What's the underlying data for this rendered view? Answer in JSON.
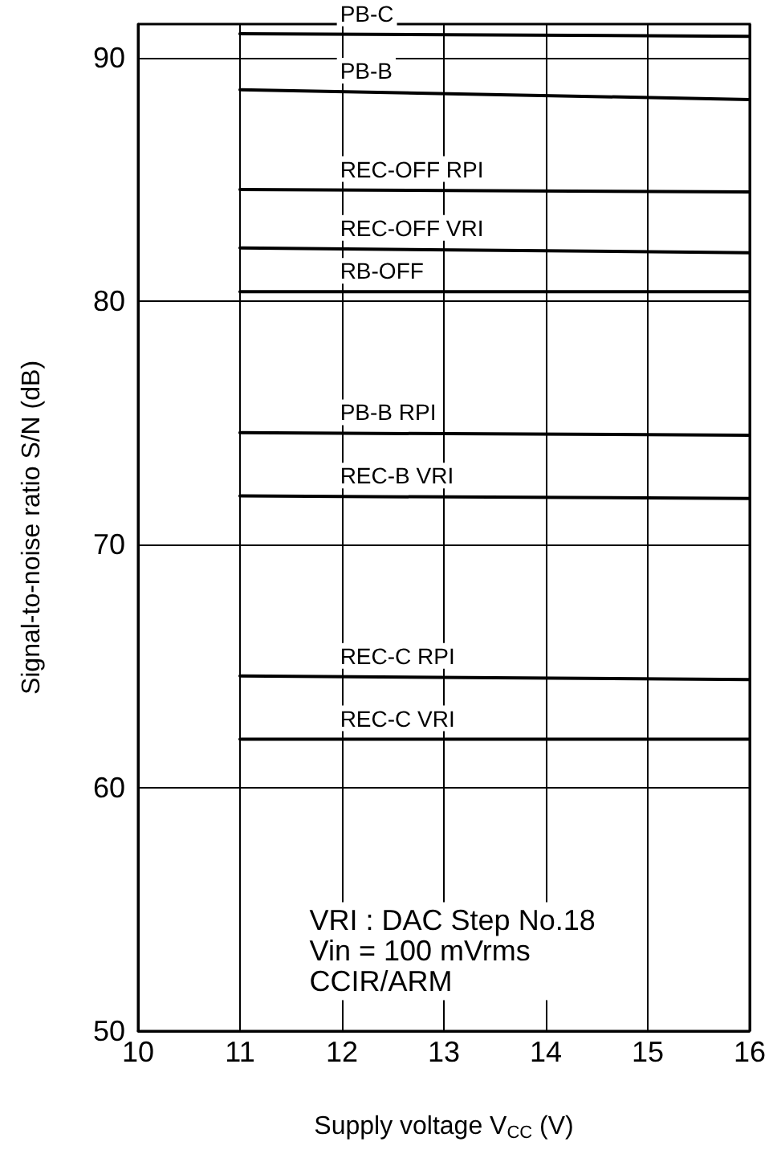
{
  "chart_data": {
    "type": "line",
    "xlabel": "Supply voltage V$_{CC}$ (V)",
    "ylabel": "Signal-to-noise ratio S/N (dB)",
    "x": [
      11,
      16
    ],
    "series": [
      {
        "name": "PB-C",
        "color": "#000000",
        "values": [
          91.0,
          90.9
        ]
      },
      {
        "name": "PB-B",
        "color": "#000000",
        "values": [
          88.7,
          88.3
        ]
      },
      {
        "name": "REC-OFF RPI",
        "color": "#000000",
        "values": [
          84.6,
          84.5
        ]
      },
      {
        "name": "REC-OFF VRI",
        "color": "#000000",
        "values": [
          82.2,
          82.0
        ]
      },
      {
        "name": "RB-OFF",
        "color": "#000000",
        "values": [
          80.4,
          80.4
        ]
      },
      {
        "name": "PB-B RPI",
        "color": "#000000",
        "values": [
          74.6,
          74.5
        ]
      },
      {
        "name": "REC-B VRI",
        "color": "#000000",
        "values": [
          72.0,
          71.9
        ]
      },
      {
        "name": "REC-C RPI",
        "color": "#000000",
        "values": [
          64.6,
          64.45
        ]
      },
      {
        "name": "REC-C VRI",
        "color": "#000000",
        "values": [
          62.0,
          62.0
        ]
      }
    ],
    "annotations": [
      "VRI : DAC Step No.18",
      "Vin = 100 mVrms",
      "CCIR/ARM"
    ],
    "xlim": [
      10,
      16
    ],
    "xticks": [
      10,
      11,
      12,
      13,
      14,
      15,
      16
    ],
    "ylim": [
      50,
      91.4
    ],
    "yticks": [
      50,
      60,
      70,
      80,
      90
    ],
    "grid": true,
    "legend": false,
    "marker": "none",
    "line_style": "solid"
  }
}
